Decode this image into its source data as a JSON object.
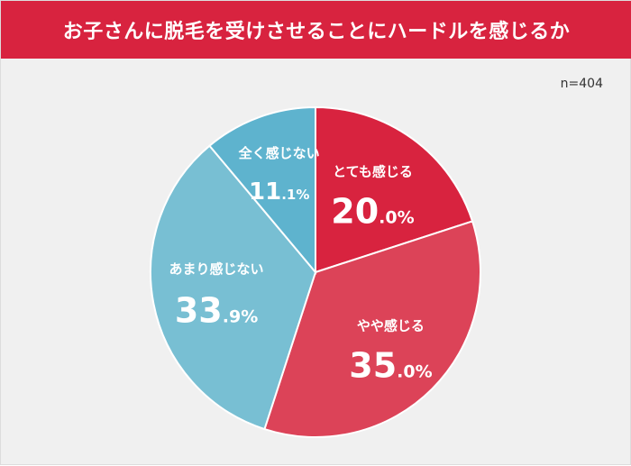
{
  "header": {
    "title": "お子さんに脱毛を受けさせることにハードルを感じるか"
  },
  "sample_size": "n=404",
  "colors": {
    "title_bar": "#d8233f",
    "background": "#f0f0f0"
  },
  "chart_data": {
    "type": "pie",
    "title": "お子さんに脱毛を受けさせることにハードルを感じるか",
    "start_angle_deg": 0,
    "direction": "clockwise",
    "slices": [
      {
        "label": "とても感じる",
        "value": 20.0,
        "int": "20",
        "dec": ".0%",
        "color": "#d8233f"
      },
      {
        "label": "やや感じる",
        "value": 35.0,
        "int": "35",
        "dec": ".0%",
        "color": "#dc4358"
      },
      {
        "label": "あまり感じない",
        "value": 33.9,
        "int": "33",
        "dec": ".9%",
        "color": "#78bfd3"
      },
      {
        "label": "全く感じない",
        "value": 11.1,
        "int": "11",
        "dec": ".1%",
        "color": "#5eb3ce"
      }
    ]
  }
}
